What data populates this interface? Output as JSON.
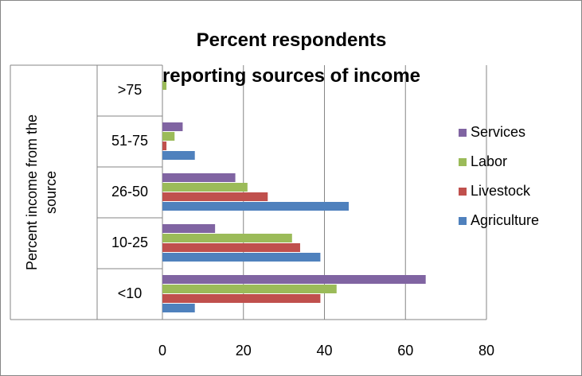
{
  "chart_data": {
    "type": "hbar",
    "title": "Percent respondents reporting sources of income",
    "y_label": "Percent income from the source",
    "categories": [
      "<10",
      "10-25",
      "26-50",
      "51-75",
      ">75"
    ],
    "series": [
      {
        "name": "Agriculture",
        "color": "#4f81bd",
        "values": [
          8,
          39,
          46,
          8,
          0
        ]
      },
      {
        "name": "Livestock",
        "color": "#c0504d",
        "values": [
          39,
          34,
          26,
          1,
          0
        ]
      },
      {
        "name": "Labor",
        "color": "#9bbb59",
        "values": [
          43,
          32,
          21,
          3,
          1
        ]
      },
      {
        "name": "Services",
        "color": "#8064a2",
        "values": [
          65,
          13,
          18,
          5,
          0
        ]
      }
    ],
    "xlim": [
      0,
      80
    ],
    "xticks": [
      0,
      20,
      40,
      60,
      80
    ],
    "grid": true,
    "legend": "right"
  }
}
